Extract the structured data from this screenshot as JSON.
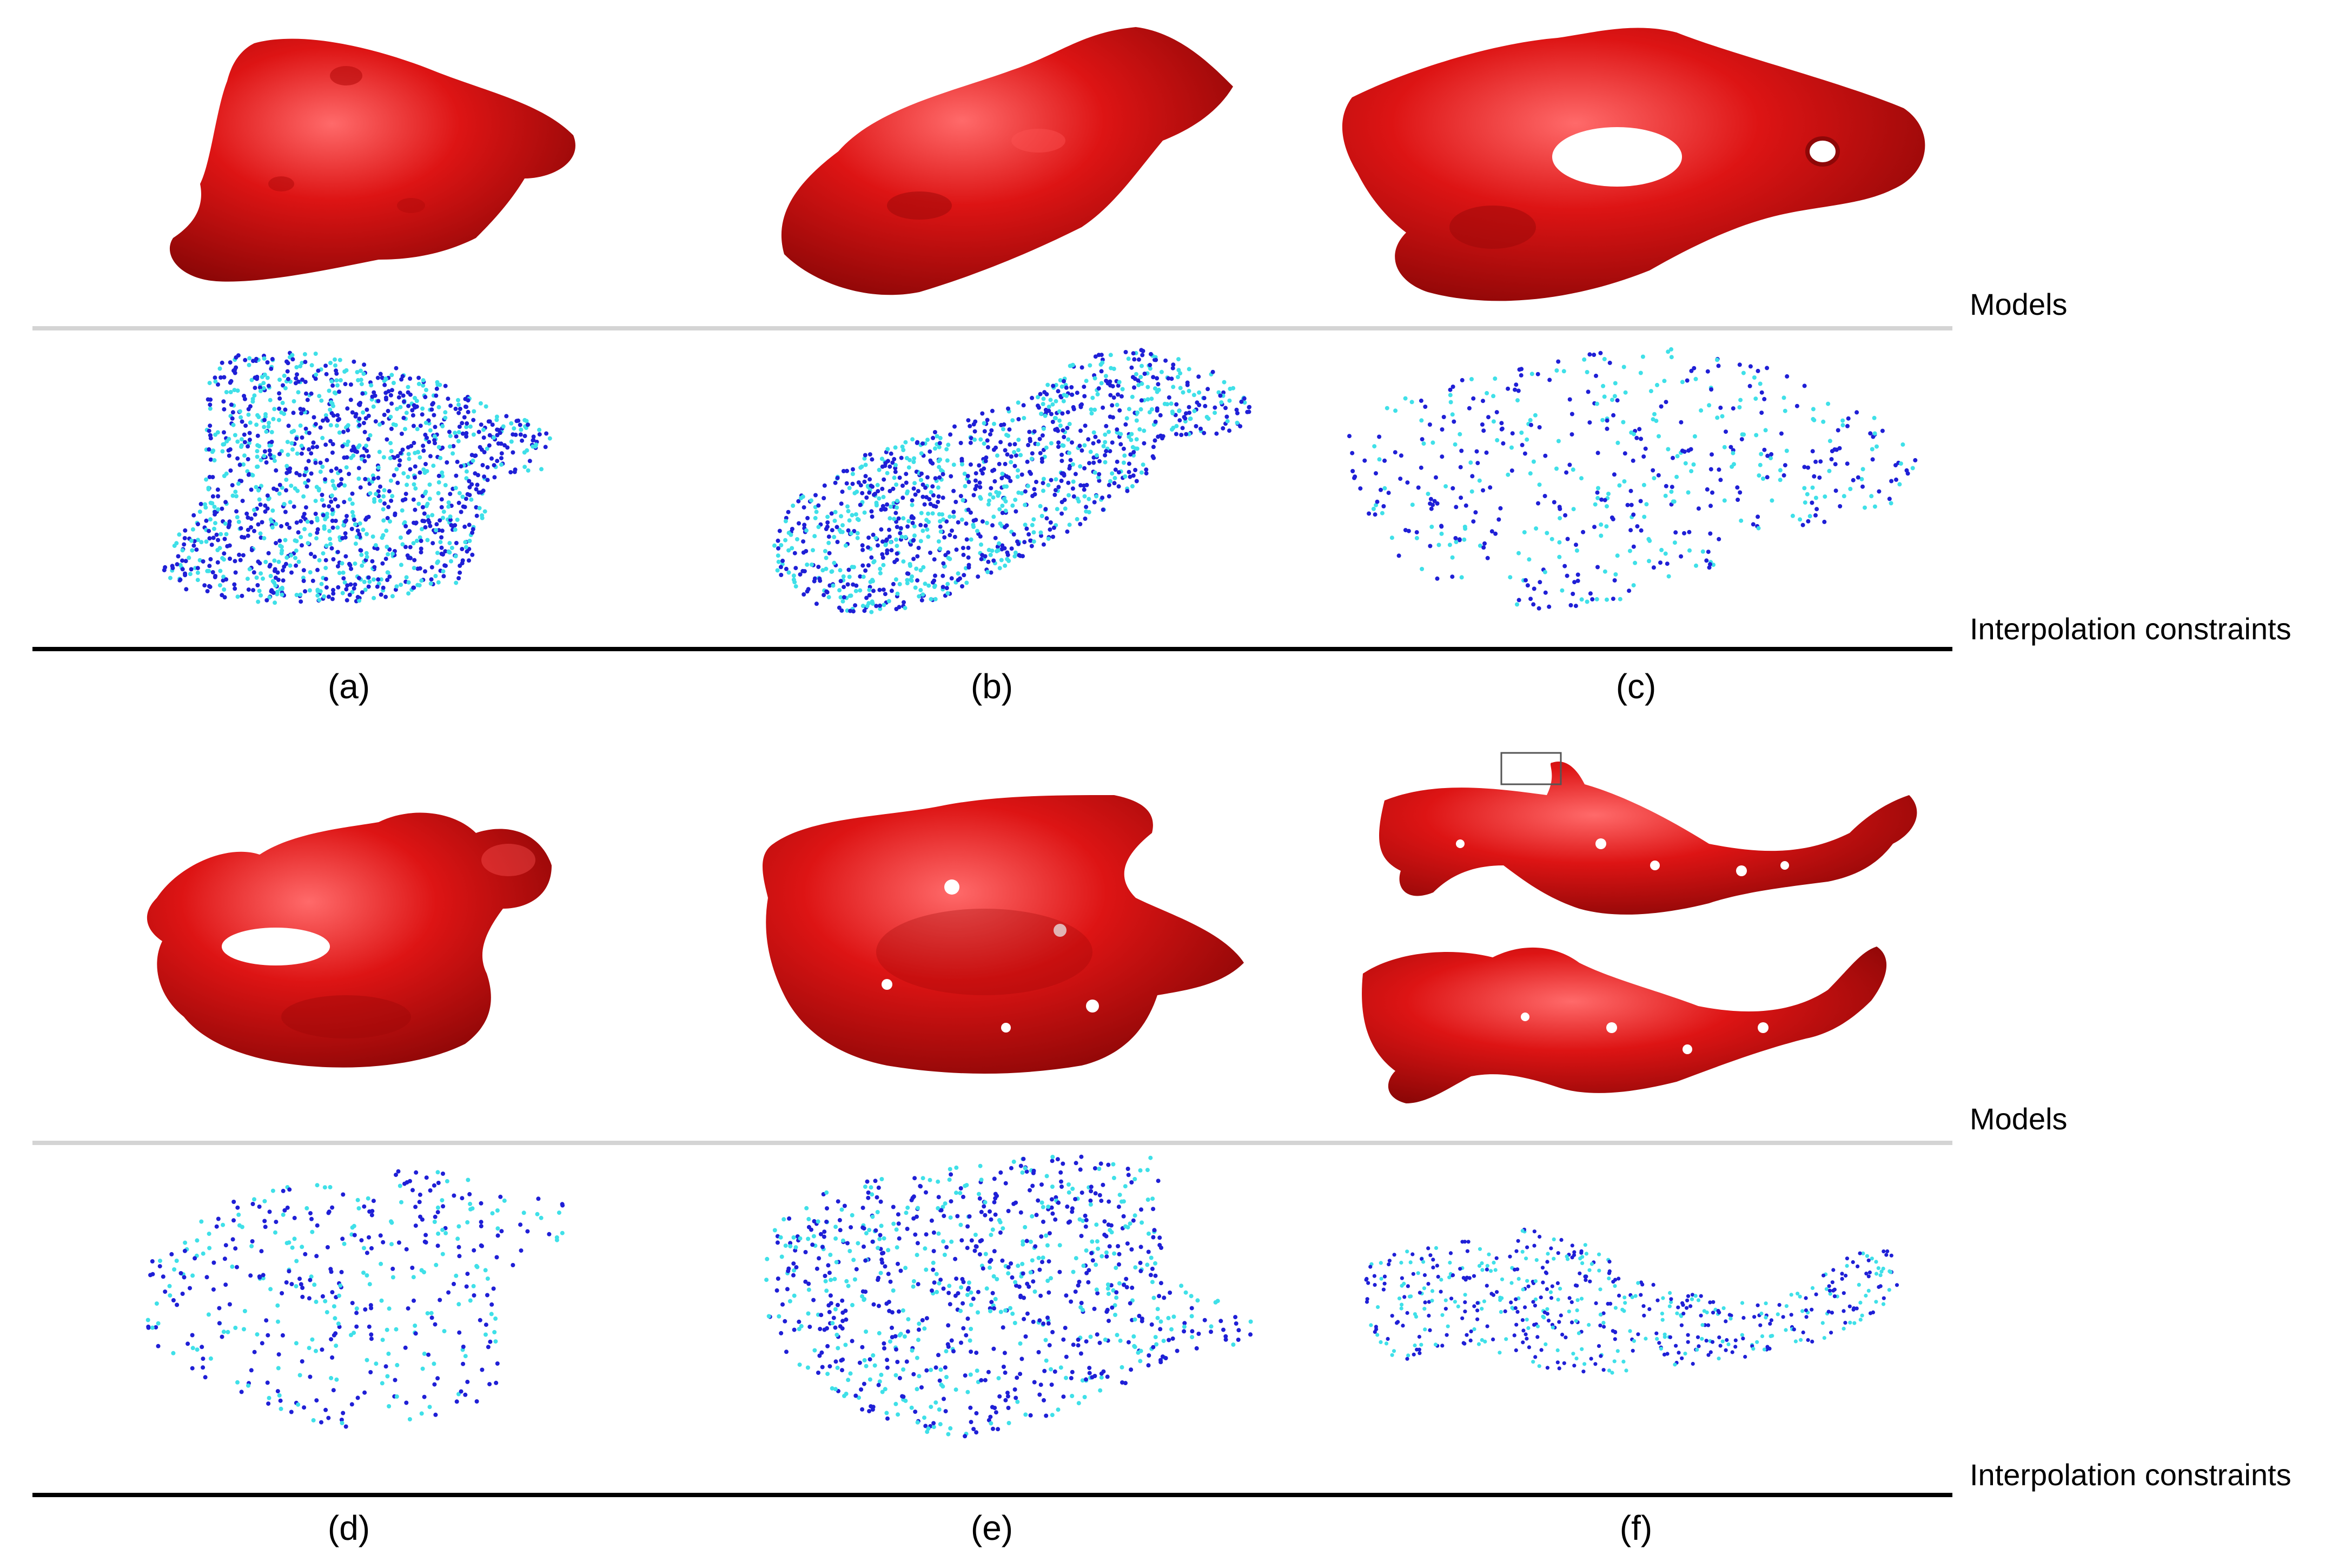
{
  "row_labels": {
    "models": "Models",
    "constraints": "Interpolation constraints"
  },
  "panels": [
    {
      "label": "(a)"
    },
    {
      "label": "(b)"
    },
    {
      "label": "(c)"
    },
    {
      "label": "(d)"
    },
    {
      "label": "(e)"
    },
    {
      "label": "(f)"
    }
  ],
  "colors": {
    "model_red": "#d40f0f",
    "model_dark": "#8e0707",
    "model_highlight": "#ff6a6a",
    "point_dark_blue": "#1f1fd6",
    "point_cyan": "#3fe0e8",
    "separator_gray": "#d4d4d4",
    "separator_black": "#000000"
  }
}
